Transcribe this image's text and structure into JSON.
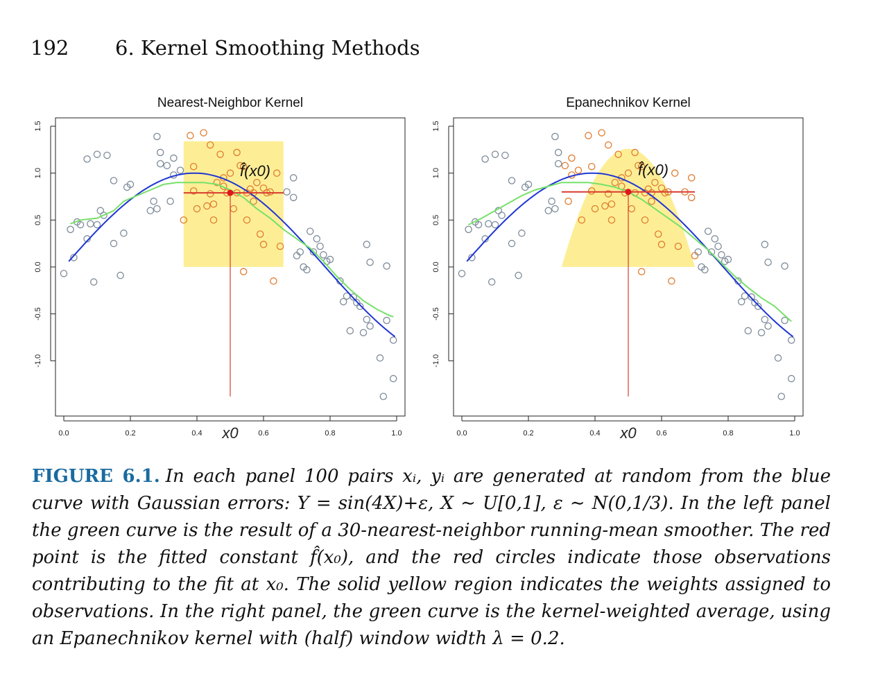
{
  "header": {
    "page_number": "192",
    "chapter_title": "6. Kernel Smoothing Methods"
  },
  "chart_data": [
    {
      "type": "scatter",
      "title": "Nearest-Neighbor Kernel",
      "xlim": [
        0,
        1
      ],
      "ylim": [
        -1.5,
        1.5
      ],
      "xticks": [
        "0.0",
        "0.2",
        "0.4",
        "0.6",
        "0.8",
        "1.0"
      ],
      "yticks": [
        "-1.0",
        "-0.5",
        "0.0",
        "0.5",
        "1.0",
        "1.5"
      ],
      "x0_label": "x0",
      "x0": 0.5,
      "fit_label": "f̂(x0)",
      "fit_value": 0.79,
      "window": {
        "x_from": 0.36,
        "x_to": 0.66,
        "shape": "rectangle",
        "height": 1.34
      },
      "points": [
        [
          0.0,
          -0.07
        ],
        [
          0.02,
          0.4
        ],
        [
          0.03,
          0.1
        ],
        [
          0.04,
          0.48
        ],
        [
          0.05,
          0.45
        ],
        [
          0.07,
          0.3
        ],
        [
          0.08,
          0.46
        ],
        [
          0.09,
          -0.16
        ],
        [
          0.1,
          0.45
        ],
        [
          0.07,
          1.15
        ],
        [
          0.11,
          0.6
        ],
        [
          0.13,
          1.19
        ],
        [
          0.1,
          1.2
        ],
        [
          0.12,
          0.55
        ],
        [
          0.15,
          0.25
        ],
        [
          0.15,
          0.92
        ],
        [
          0.17,
          -0.09
        ],
        [
          0.18,
          0.36
        ],
        [
          0.19,
          0.85
        ],
        [
          0.2,
          0.88
        ],
        [
          0.26,
          0.6
        ],
        [
          0.27,
          0.7
        ],
        [
          0.28,
          1.39
        ],
        [
          0.28,
          0.62
        ],
        [
          0.29,
          1.22
        ],
        [
          0.29,
          1.1
        ],
        [
          0.31,
          1.08
        ],
        [
          0.32,
          0.7
        ],
        [
          0.33,
          1.16
        ],
        [
          0.33,
          0.98
        ],
        [
          0.35,
          1.03
        ],
        [
          0.36,
          0.5
        ],
        [
          0.38,
          1.4
        ],
        [
          0.39,
          1.07
        ],
        [
          0.39,
          0.81
        ],
        [
          0.4,
          0.62
        ],
        [
          0.42,
          1.43
        ],
        [
          0.43,
          0.65
        ],
        [
          0.44,
          1.3
        ],
        [
          0.45,
          0.67
        ],
        [
          0.45,
          0.5
        ],
        [
          0.46,
          0.9
        ],
        [
          0.47,
          1.2
        ],
        [
          0.48,
          0.86
        ],
        [
          0.49,
          0.79
        ],
        [
          0.51,
          0.62
        ],
        [
          0.52,
          1.22
        ],
        [
          0.52,
          0.79
        ],
        [
          0.53,
          1.08
        ],
        [
          0.54,
          1.07
        ],
        [
          0.54,
          -0.05
        ],
        [
          0.55,
          0.5
        ],
        [
          0.56,
          0.83
        ],
        [
          0.57,
          0.79
        ],
        [
          0.58,
          0.9
        ],
        [
          0.59,
          0.35
        ],
        [
          0.6,
          0.24
        ],
        [
          0.61,
          0.79
        ],
        [
          0.62,
          0.8
        ],
        [
          0.63,
          -0.15
        ],
        [
          0.64,
          1.0
        ],
        [
          0.65,
          0.22
        ],
        [
          0.67,
          0.8
        ],
        [
          0.69,
          0.95
        ],
        [
          0.69,
          0.74
        ],
        [
          0.7,
          0.12
        ],
        [
          0.71,
          0.16
        ],
        [
          0.72,
          0.0
        ],
        [
          0.73,
          -0.03
        ],
        [
          0.74,
          0.38
        ],
        [
          0.75,
          0.16
        ],
        [
          0.76,
          0.3
        ],
        [
          0.77,
          0.22
        ],
        [
          0.78,
          0.13
        ],
        [
          0.79,
          0.06
        ],
        [
          0.8,
          0.08
        ],
        [
          0.83,
          -0.15
        ],
        [
          0.84,
          -0.37
        ],
        [
          0.85,
          -0.31
        ],
        [
          0.86,
          -0.68
        ],
        [
          0.87,
          -0.32
        ],
        [
          0.88,
          -0.38
        ],
        [
          0.89,
          -0.42
        ],
        [
          0.9,
          -0.7
        ],
        [
          0.91,
          0.24
        ],
        [
          0.91,
          -0.56
        ],
        [
          0.92,
          -0.63
        ],
        [
          0.92,
          0.05
        ],
        [
          0.95,
          -0.97
        ],
        [
          0.96,
          -1.38
        ],
        [
          0.97,
          -0.57
        ],
        [
          0.97,
          0.01
        ],
        [
          0.99,
          -0.78
        ],
        [
          0.99,
          -1.19
        ],
        [
          0.6,
          0.84
        ],
        [
          0.55,
          0.79
        ],
        [
          0.48,
          0.95
        ],
        [
          0.44,
          0.78
        ],
        [
          0.5,
          1.0
        ],
        [
          0.57,
          0.7
        ]
      ],
      "curve_blue": "sin(4x)",
      "curve_green": [
        [
          0.02,
          0.46
        ],
        [
          0.05,
          0.5
        ],
        [
          0.1,
          0.52
        ],
        [
          0.15,
          0.6
        ],
        [
          0.18,
          0.7
        ],
        [
          0.22,
          0.76
        ],
        [
          0.26,
          0.82
        ],
        [
          0.3,
          0.88
        ],
        [
          0.34,
          0.9
        ],
        [
          0.38,
          0.9
        ],
        [
          0.42,
          0.9
        ],
        [
          0.46,
          0.88
        ],
        [
          0.5,
          0.82
        ],
        [
          0.54,
          0.74
        ],
        [
          0.58,
          0.62
        ],
        [
          0.62,
          0.52
        ],
        [
          0.66,
          0.4
        ],
        [
          0.7,
          0.3
        ],
        [
          0.74,
          0.2
        ],
        [
          0.78,
          0.06
        ],
        [
          0.82,
          -0.1
        ],
        [
          0.86,
          -0.24
        ],
        [
          0.9,
          -0.36
        ],
        [
          0.94,
          -0.45
        ],
        [
          0.98,
          -0.52
        ],
        [
          0.99,
          -0.53
        ]
      ]
    },
    {
      "type": "scatter",
      "title": "Epanechnikov Kernel",
      "xlim": [
        0,
        1
      ],
      "ylim": [
        -1.5,
        1.5
      ],
      "xticks": [
        "0.0",
        "0.2",
        "0.4",
        "0.6",
        "0.8",
        "1.0"
      ],
      "yticks": [
        "-1.0",
        "-0.5",
        "0.0",
        "0.5",
        "1.0",
        "1.5"
      ],
      "x0_label": "x0",
      "x0": 0.5,
      "fit_label": "f̂(x0)",
      "fit_value": 0.8,
      "window": {
        "x_from": 0.3,
        "x_to": 0.7,
        "shape": "epanechnikov",
        "height": 1.26
      },
      "points": [
        [
          0.0,
          -0.07
        ],
        [
          0.02,
          0.4
        ],
        [
          0.03,
          0.1
        ],
        [
          0.04,
          0.48
        ],
        [
          0.05,
          0.45
        ],
        [
          0.07,
          0.3
        ],
        [
          0.08,
          0.46
        ],
        [
          0.09,
          -0.16
        ],
        [
          0.1,
          0.45
        ],
        [
          0.07,
          1.15
        ],
        [
          0.11,
          0.6
        ],
        [
          0.13,
          1.19
        ],
        [
          0.1,
          1.2
        ],
        [
          0.12,
          0.55
        ],
        [
          0.15,
          0.25
        ],
        [
          0.15,
          0.92
        ],
        [
          0.17,
          -0.09
        ],
        [
          0.18,
          0.36
        ],
        [
          0.19,
          0.85
        ],
        [
          0.2,
          0.88
        ],
        [
          0.26,
          0.6
        ],
        [
          0.27,
          0.7
        ],
        [
          0.28,
          1.39
        ],
        [
          0.28,
          0.62
        ],
        [
          0.29,
          1.22
        ],
        [
          0.29,
          1.1
        ],
        [
          0.31,
          1.08
        ],
        [
          0.32,
          0.7
        ],
        [
          0.33,
          1.16
        ],
        [
          0.33,
          0.98
        ],
        [
          0.35,
          1.03
        ],
        [
          0.36,
          0.5
        ],
        [
          0.38,
          1.4
        ],
        [
          0.39,
          1.07
        ],
        [
          0.39,
          0.81
        ],
        [
          0.4,
          0.62
        ],
        [
          0.42,
          1.43
        ],
        [
          0.43,
          0.65
        ],
        [
          0.44,
          1.3
        ],
        [
          0.45,
          0.67
        ],
        [
          0.45,
          0.5
        ],
        [
          0.46,
          0.9
        ],
        [
          0.47,
          1.2
        ],
        [
          0.48,
          0.86
        ],
        [
          0.49,
          0.79
        ],
        [
          0.51,
          0.62
        ],
        [
          0.52,
          1.22
        ],
        [
          0.52,
          0.79
        ],
        [
          0.53,
          1.08
        ],
        [
          0.54,
          1.07
        ],
        [
          0.54,
          -0.05
        ],
        [
          0.55,
          0.5
        ],
        [
          0.56,
          0.83
        ],
        [
          0.57,
          0.79
        ],
        [
          0.58,
          0.9
        ],
        [
          0.59,
          0.35
        ],
        [
          0.6,
          0.24
        ],
        [
          0.61,
          0.79
        ],
        [
          0.62,
          0.8
        ],
        [
          0.63,
          -0.15
        ],
        [
          0.64,
          1.0
        ],
        [
          0.65,
          0.22
        ],
        [
          0.67,
          0.8
        ],
        [
          0.69,
          0.95
        ],
        [
          0.69,
          0.74
        ],
        [
          0.7,
          0.12
        ],
        [
          0.71,
          0.16
        ],
        [
          0.72,
          0.0
        ],
        [
          0.73,
          -0.03
        ],
        [
          0.74,
          0.38
        ],
        [
          0.75,
          0.16
        ],
        [
          0.76,
          0.3
        ],
        [
          0.77,
          0.22
        ],
        [
          0.78,
          0.13
        ],
        [
          0.79,
          0.06
        ],
        [
          0.8,
          0.08
        ],
        [
          0.83,
          -0.15
        ],
        [
          0.84,
          -0.37
        ],
        [
          0.85,
          -0.31
        ],
        [
          0.86,
          -0.68
        ],
        [
          0.87,
          -0.32
        ],
        [
          0.88,
          -0.38
        ],
        [
          0.89,
          -0.42
        ],
        [
          0.9,
          -0.7
        ],
        [
          0.91,
          0.24
        ],
        [
          0.91,
          -0.56
        ],
        [
          0.92,
          -0.63
        ],
        [
          0.92,
          0.05
        ],
        [
          0.95,
          -0.97
        ],
        [
          0.96,
          -1.38
        ],
        [
          0.97,
          -0.57
        ],
        [
          0.97,
          0.01
        ],
        [
          0.99,
          -0.78
        ],
        [
          0.99,
          -1.19
        ],
        [
          0.6,
          0.84
        ],
        [
          0.55,
          0.79
        ],
        [
          0.48,
          0.95
        ],
        [
          0.44,
          0.78
        ],
        [
          0.5,
          1.0
        ],
        [
          0.57,
          0.7
        ]
      ],
      "curve_blue": "sin(4x)",
      "curve_green": [
        [
          0.02,
          0.45
        ],
        [
          0.06,
          0.52
        ],
        [
          0.1,
          0.6
        ],
        [
          0.14,
          0.68
        ],
        [
          0.18,
          0.76
        ],
        [
          0.22,
          0.82
        ],
        [
          0.26,
          0.86
        ],
        [
          0.3,
          0.9
        ],
        [
          0.34,
          0.9
        ],
        [
          0.38,
          0.9
        ],
        [
          0.42,
          0.88
        ],
        [
          0.46,
          0.85
        ],
        [
          0.5,
          0.8
        ],
        [
          0.54,
          0.72
        ],
        [
          0.58,
          0.62
        ],
        [
          0.62,
          0.52
        ],
        [
          0.66,
          0.42
        ],
        [
          0.7,
          0.3
        ],
        [
          0.74,
          0.18
        ],
        [
          0.78,
          0.04
        ],
        [
          0.82,
          -0.1
        ],
        [
          0.86,
          -0.22
        ],
        [
          0.9,
          -0.33
        ],
        [
          0.94,
          -0.42
        ],
        [
          0.98,
          -0.55
        ],
        [
          0.99,
          -0.58
        ]
      ]
    }
  ],
  "caption": {
    "label": "FIGURE 6.1.",
    "text": "In each panel 100 pairs xᵢ, yᵢ are generated at random from the blue curve with Gaussian errors: Y = sin(4X)+ε, X ∼ U[0,1], ε ∼ N(0,1/3). In the left panel the green curve is the result of a 30-nearest-neighbor running-mean smoother. The red point is the fitted constant f̂(x₀), and the red circles indicate those observations contributing to the fit at x₀. The solid yellow region indicates the weights assigned to observations. In the right panel, the green curve is the kernel-weighted average, using an Epanechnikov kernel with (half) window width λ = 0.2."
  }
}
